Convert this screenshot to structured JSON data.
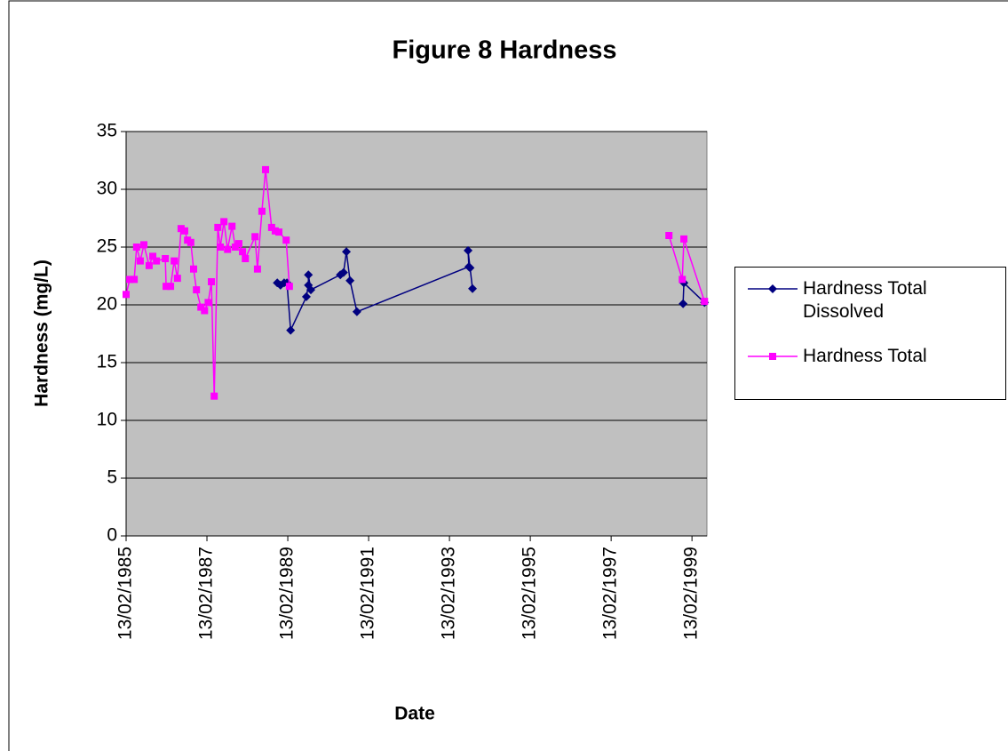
{
  "chart_data": {
    "type": "line",
    "title": "Figure 8 Hardness",
    "x_label": "Date",
    "y_label": "Hardness (mg/L)",
    "xlim": [
      1985.12,
      1999.49
    ],
    "ylim": [
      0,
      35
    ],
    "xticks": [
      {
        "value": 1985.12,
        "label": "13/02/1985"
      },
      {
        "value": 1987.12,
        "label": "13/02/1987"
      },
      {
        "value": 1989.12,
        "label": "13/02/1989"
      },
      {
        "value": 1991.12,
        "label": "13/02/1991"
      },
      {
        "value": 1993.12,
        "label": "13/02/1993"
      },
      {
        "value": 1995.12,
        "label": "13/02/1995"
      },
      {
        "value": 1997.12,
        "label": "13/02/1997"
      },
      {
        "value": 1999.12,
        "label": "13/02/1999"
      }
    ],
    "yticks": [
      0,
      5,
      10,
      15,
      20,
      25,
      30,
      35
    ],
    "grid": true,
    "plot_background": "#c0c0c0",
    "legend": "right",
    "series": [
      {
        "name": "Hardness Total Dissolved",
        "color": "#000080",
        "marker": "diamond",
        "x": [
          1988.86,
          1988.94,
          1989.03,
          1989.1,
          1989.19,
          1989.58,
          1989.63,
          1989.63,
          1989.69,
          1990.42,
          1990.5,
          1990.57,
          1990.66,
          1990.83,
          1993.6,
          1993.58,
          1993.63,
          1993.69,
          null,
          1998.9,
          1998.92,
          1999.43
        ],
        "values": [
          21.9,
          21.7,
          21.9,
          21.9,
          17.8,
          20.7,
          21.7,
          22.6,
          21.3,
          22.6,
          22.8,
          24.6,
          22.1,
          19.4,
          23.3,
          24.7,
          23.2,
          21.4,
          null,
          20.1,
          21.9,
          20.2
        ]
      },
      {
        "name": "Hardness Total",
        "color": "#ff00ff",
        "marker": "square",
        "x": [
          1985.12,
          1985.21,
          1985.32,
          1985.38,
          1985.47,
          1985.56,
          1985.69,
          1985.78,
          1985.87,
          1986.09,
          1986.11,
          1986.22,
          1986.31,
          1986.39,
          1986.48,
          1986.57,
          1986.64,
          1986.72,
          1986.79,
          1986.86,
          1986.97,
          1987.06,
          1987.15,
          1987.23,
          1987.3,
          1987.39,
          1987.45,
          1987.54,
          1987.63,
          1987.74,
          1987.82,
          1987.91,
          1988.0,
          1988.07,
          1988.31,
          1988.37,
          1988.48,
          1988.57,
          1988.72,
          1988.81,
          1988.9,
          1989.08,
          1989.16,
          null,
          1998.55,
          1998.88,
          1998.92,
          1999.43
        ],
        "values": [
          20.9,
          22.2,
          22.2,
          25.0,
          23.8,
          25.2,
          23.4,
          24.2,
          23.8,
          24.0,
          21.6,
          21.6,
          23.8,
          22.3,
          26.6,
          26.4,
          25.6,
          25.4,
          23.1,
          21.3,
          19.8,
          19.5,
          20.2,
          22.0,
          12.1,
          26.7,
          25.0,
          27.2,
          24.8,
          26.8,
          25.0,
          25.3,
          24.6,
          24.0,
          25.9,
          23.1,
          28.1,
          31.7,
          26.7,
          26.4,
          26.3,
          25.6,
          21.6,
          null,
          26.0,
          22.2,
          25.7,
          20.3
        ]
      }
    ]
  }
}
